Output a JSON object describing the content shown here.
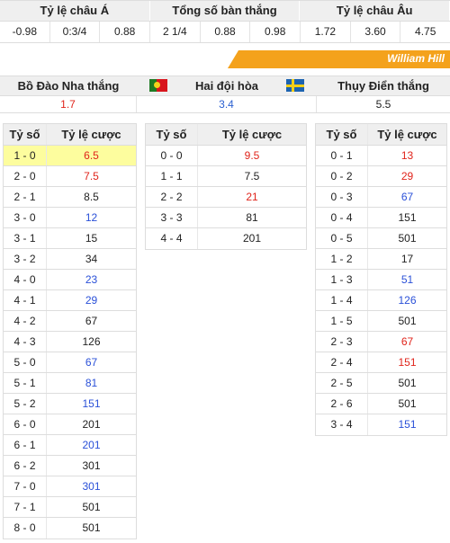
{
  "odds": {
    "headers": [
      "Tỷ lệ châu Á",
      "Tổng số bàn thắng",
      "Tỷ lệ châu Âu"
    ],
    "asian": [
      "-0.98",
      "0:3/4",
      "0.88"
    ],
    "total": [
      "2 1/4",
      "0.88",
      "0.98"
    ],
    "european": [
      "1.72",
      "3.60",
      "4.75"
    ]
  },
  "bookmaker": "William Hill",
  "result": {
    "home_label": "Bồ Đào Nha thắng",
    "draw_label": "Hai đội hòa",
    "away_label": "Thụy Điển thắng",
    "home_odds": "1.7",
    "draw_odds": "3.4",
    "away_odds": "5.5",
    "home_flag": "portugal-flag",
    "away_flag": "sweden-flag"
  },
  "score_header": {
    "score": "Tỷ số",
    "odds": "Tỷ lệ cược"
  },
  "colors": {
    "red": "#e0241b",
    "blue": "#2a50d8",
    "highlight": "#fdfd9e",
    "banner": "#f4a21c"
  },
  "home_wins": [
    {
      "score": "1 - 0",
      "odds": "6.5",
      "color": "red",
      "highlight": true
    },
    {
      "score": "2 - 0",
      "odds": "7.5",
      "color": "red"
    },
    {
      "score": "2 - 1",
      "odds": "8.5",
      "color": "black"
    },
    {
      "score": "3 - 0",
      "odds": "12",
      "color": "blue"
    },
    {
      "score": "3 - 1",
      "odds": "15",
      "color": "black"
    },
    {
      "score": "3 - 2",
      "odds": "34",
      "color": "black"
    },
    {
      "score": "4 - 0",
      "odds": "23",
      "color": "blue"
    },
    {
      "score": "4 - 1",
      "odds": "29",
      "color": "blue"
    },
    {
      "score": "4 - 2",
      "odds": "67",
      "color": "black"
    },
    {
      "score": "4 - 3",
      "odds": "126",
      "color": "black"
    },
    {
      "score": "5 - 0",
      "odds": "67",
      "color": "blue"
    },
    {
      "score": "5 - 1",
      "odds": "81",
      "color": "blue"
    },
    {
      "score": "5 - 2",
      "odds": "151",
      "color": "blue"
    },
    {
      "score": "6 - 0",
      "odds": "201",
      "color": "black"
    },
    {
      "score": "6 - 1",
      "odds": "201",
      "color": "blue"
    },
    {
      "score": "6 - 2",
      "odds": "301",
      "color": "black"
    },
    {
      "score": "7 - 0",
      "odds": "301",
      "color": "blue"
    },
    {
      "score": "7 - 1",
      "odds": "501",
      "color": "black"
    },
    {
      "score": "8 - 0",
      "odds": "501",
      "color": "black"
    }
  ],
  "draws": [
    {
      "score": "0 - 0",
      "odds": "9.5",
      "color": "red"
    },
    {
      "score": "1 - 1",
      "odds": "7.5",
      "color": "black"
    },
    {
      "score": "2 - 2",
      "odds": "21",
      "color": "red"
    },
    {
      "score": "3 - 3",
      "odds": "81",
      "color": "black"
    },
    {
      "score": "4 - 4",
      "odds": "201",
      "color": "black"
    }
  ],
  "away_wins": [
    {
      "score": "0 - 1",
      "odds": "13",
      "color": "red"
    },
    {
      "score": "0 - 2",
      "odds": "29",
      "color": "red"
    },
    {
      "score": "0 - 3",
      "odds": "67",
      "color": "blue"
    },
    {
      "score": "0 - 4",
      "odds": "151",
      "color": "black"
    },
    {
      "score": "0 - 5",
      "odds": "501",
      "color": "black"
    },
    {
      "score": "1 - 2",
      "odds": "17",
      "color": "black"
    },
    {
      "score": "1 - 3",
      "odds": "51",
      "color": "blue"
    },
    {
      "score": "1 - 4",
      "odds": "126",
      "color": "blue"
    },
    {
      "score": "1 - 5",
      "odds": "501",
      "color": "black"
    },
    {
      "score": "2 - 3",
      "odds": "67",
      "color": "red"
    },
    {
      "score": "2 - 4",
      "odds": "151",
      "color": "red"
    },
    {
      "score": "2 - 5",
      "odds": "501",
      "color": "black"
    },
    {
      "score": "2 - 6",
      "odds": "501",
      "color": "black"
    },
    {
      "score": "3 - 4",
      "odds": "151",
      "color": "blue"
    }
  ]
}
